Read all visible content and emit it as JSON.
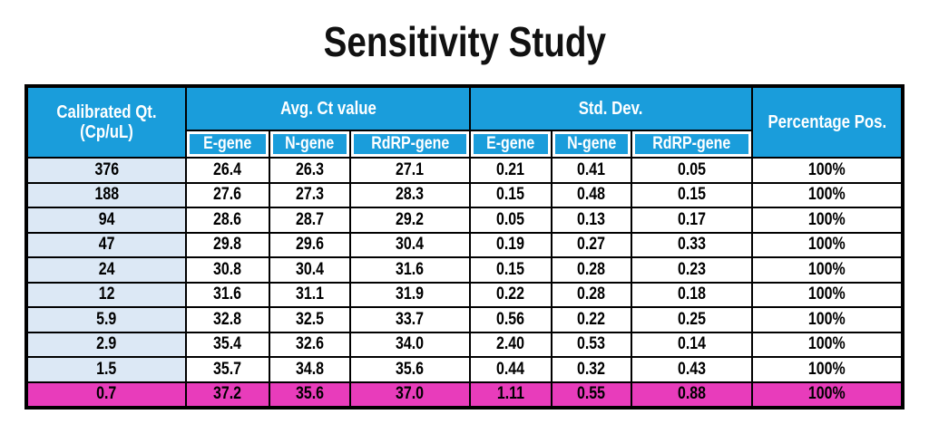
{
  "title": "Sensitivity Study",
  "table": {
    "col1_header": [
      "Calibrated Qt.",
      "(Cp/uL)"
    ],
    "group_headers": [
      "Avg. Ct value",
      "Std. Dev."
    ],
    "sub_headers": [
      "E-gene",
      "N-gene",
      "RdRP-gene",
      "E-gene",
      "N-gene",
      "RdRP-gene"
    ],
    "last_col_header": "Percentage Pos.",
    "rows": [
      [
        "376",
        "26.4",
        "26.3",
        "27.1",
        "0.21",
        "0.41",
        "0.05",
        "100%"
      ],
      [
        "188",
        "27.6",
        "27.3",
        "28.3",
        "0.15",
        "0.48",
        "0.15",
        "100%"
      ],
      [
        "94",
        "28.6",
        "28.7",
        "29.2",
        "0.05",
        "0.13",
        "0.17",
        "100%"
      ],
      [
        "47",
        "29.8",
        "29.6",
        "30.4",
        "0.19",
        "0.27",
        "0.33",
        "100%"
      ],
      [
        "24",
        "30.8",
        "30.4",
        "31.6",
        "0.15",
        "0.28",
        "0.23",
        "100%"
      ],
      [
        "12",
        "31.6",
        "31.1",
        "31.9",
        "0.22",
        "0.28",
        "0.18",
        "100%"
      ],
      [
        "5.9",
        "32.8",
        "32.5",
        "33.7",
        "0.56",
        "0.22",
        "0.25",
        "100%"
      ],
      [
        "2.9",
        "35.4",
        "32.6",
        "34.0",
        "2.40",
        "0.53",
        "0.14",
        "100%"
      ],
      [
        "1.5",
        "35.7",
        "34.8",
        "35.6",
        "0.44",
        "0.32",
        "0.43",
        "100%"
      ],
      [
        "0.7",
        "37.2",
        "35.6",
        "37.0",
        "1.11",
        "0.55",
        "0.88",
        "100%"
      ]
    ],
    "highlight_row_index": 9
  },
  "colors": {
    "header_blue": "#1a9ddb",
    "first_col_blue": "#dce8f5",
    "highlight_magenta": "#e83cbb",
    "border_black": "#000000"
  },
  "chart_data": {
    "type": "table",
    "title": "Sensitivity Study",
    "columns": [
      "Calibrated Qt. (Cp/uL)",
      "Avg. Ct value E-gene",
      "Avg. Ct value N-gene",
      "Avg. Ct value RdRP-gene",
      "Std. Dev. E-gene",
      "Std. Dev. N-gene",
      "Std. Dev. RdRP-gene",
      "Percentage Pos."
    ],
    "rows": [
      [
        376,
        26.4,
        26.3,
        27.1,
        0.21,
        0.41,
        0.05,
        "100%"
      ],
      [
        188,
        27.6,
        27.3,
        28.3,
        0.15,
        0.48,
        0.15,
        "100%"
      ],
      [
        94,
        28.6,
        28.7,
        29.2,
        0.05,
        0.13,
        0.17,
        "100%"
      ],
      [
        47,
        29.8,
        29.6,
        30.4,
        0.19,
        0.27,
        0.33,
        "100%"
      ],
      [
        24,
        30.8,
        30.4,
        31.6,
        0.15,
        0.28,
        0.23,
        "100%"
      ],
      [
        12,
        31.6,
        31.1,
        31.9,
        0.22,
        0.28,
        0.18,
        "100%"
      ],
      [
        5.9,
        32.8,
        32.5,
        33.7,
        0.56,
        0.22,
        0.25,
        "100%"
      ],
      [
        2.9,
        35.4,
        32.6,
        34.0,
        2.4,
        0.53,
        0.14,
        "100%"
      ],
      [
        1.5,
        35.7,
        34.8,
        35.6,
        0.44,
        0.32,
        0.43,
        "100%"
      ],
      [
        0.7,
        37.2,
        35.6,
        37.0,
        1.11,
        0.55,
        0.88,
        "100%"
      ]
    ],
    "highlight_row_index": 9,
    "layout_hints": {
      "header_fill": "#1a9ddb",
      "first_column_fill": "#dce8f5",
      "highlight_row_fill": "#e83cbb",
      "grid": true
    }
  }
}
